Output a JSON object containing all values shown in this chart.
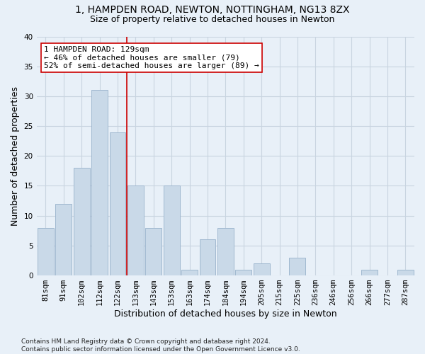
{
  "title_line1": "1, HAMPDEN ROAD, NEWTON, NOTTINGHAM, NG13 8ZX",
  "title_line2": "Size of property relative to detached houses in Newton",
  "xlabel": "Distribution of detached houses by size in Newton",
  "ylabel": "Number of detached properties",
  "categories": [
    "81sqm",
    "91sqm",
    "102sqm",
    "112sqm",
    "122sqm",
    "133sqm",
    "143sqm",
    "153sqm",
    "163sqm",
    "174sqm",
    "184sqm",
    "194sqm",
    "205sqm",
    "215sqm",
    "225sqm",
    "236sqm",
    "246sqm",
    "256sqm",
    "266sqm",
    "277sqm",
    "287sqm"
  ],
  "values": [
    8,
    12,
    18,
    31,
    24,
    15,
    8,
    15,
    1,
    6,
    8,
    1,
    2,
    0,
    3,
    0,
    0,
    0,
    1,
    0,
    1
  ],
  "bar_color": "#c9d9e8",
  "bar_edgecolor": "#a0b8d0",
  "vline_x": 4.5,
  "vline_color": "#cc0000",
  "annotation_line1": "1 HAMPDEN ROAD: 129sqm",
  "annotation_line2": "← 46% of detached houses are smaller (79)",
  "annotation_line3": "52% of semi-detached houses are larger (89) →",
  "annotation_box_edgecolor": "#cc0000",
  "annotation_box_facecolor": "#ffffff",
  "ylim": [
    0,
    40
  ],
  "yticks": [
    0,
    5,
    10,
    15,
    20,
    25,
    30,
    35,
    40
  ],
  "grid_color": "#c8d4e0",
  "background_color": "#e8f0f8",
  "footer": "Contains HM Land Registry data © Crown copyright and database right 2024.\nContains public sector information licensed under the Open Government Licence v3.0.",
  "title_fontsize": 10,
  "subtitle_fontsize": 9,
  "axis_label_fontsize": 9,
  "tick_fontsize": 7.5,
  "annotation_fontsize": 8,
  "footer_fontsize": 6.5
}
